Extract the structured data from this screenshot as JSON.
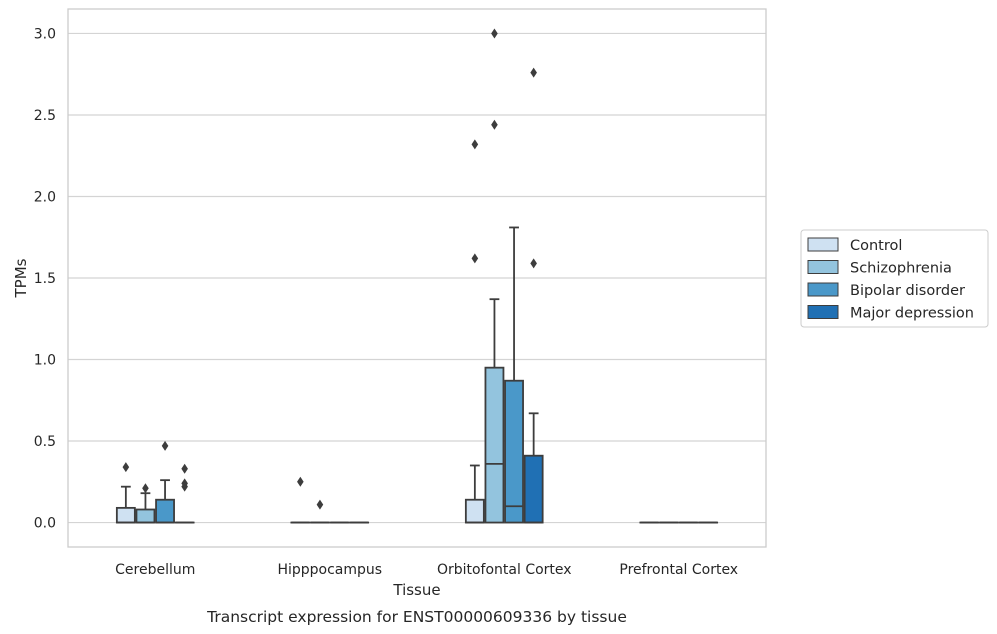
{
  "chart_data": {
    "type": "box",
    "xlabel": "Tissue",
    "ylabel": "TPMs",
    "caption": "Transcript expression for ENST00000609336 by tissue",
    "categories": [
      "Cerebellum",
      "Hipppocampus",
      "Orbitofontal Cortex",
      "Prefrontal Cortex"
    ],
    "ylim": [
      -0.15,
      3.15
    ],
    "yticks": [
      0.0,
      0.5,
      1.0,
      1.5,
      2.0,
      2.5,
      3.0
    ],
    "ytick_labels": [
      "0.0",
      "0.5",
      "1.0",
      "1.5",
      "2.0",
      "2.5",
      "3.0"
    ],
    "grid": "horizontal",
    "legend_position": "right",
    "series": [
      {
        "name": "Control",
        "color": "#cfe1f2",
        "boxes": [
          {
            "q1": 0.0,
            "median": 0.0,
            "q3": 0.09,
            "whislo": 0.0,
            "whishi": 0.22,
            "fliers": [
              0.34
            ]
          },
          {
            "q1": 0.0,
            "median": 0.0,
            "q3": 0.0,
            "whislo": 0.0,
            "whishi": 0.0,
            "fliers": [
              0.25
            ]
          },
          {
            "q1": 0.0,
            "median": 0.0,
            "q3": 0.14,
            "whislo": 0.0,
            "whishi": 0.35,
            "fliers": [
              1.62,
              2.32
            ]
          },
          {
            "q1": 0.0,
            "median": 0.0,
            "q3": 0.0,
            "whislo": 0.0,
            "whishi": 0.0,
            "fliers": []
          }
        ]
      },
      {
        "name": "Schizophrenia",
        "color": "#93c4de",
        "boxes": [
          {
            "q1": 0.0,
            "median": 0.0,
            "q3": 0.08,
            "whislo": 0.0,
            "whishi": 0.18,
            "fliers": [
              0.21
            ]
          },
          {
            "q1": 0.0,
            "median": 0.0,
            "q3": 0.0,
            "whislo": 0.0,
            "whishi": 0.0,
            "fliers": [
              0.11
            ]
          },
          {
            "q1": 0.0,
            "median": 0.36,
            "q3": 0.95,
            "whislo": 0.0,
            "whishi": 1.37,
            "fliers": [
              2.44,
              3.0
            ]
          },
          {
            "q1": 0.0,
            "median": 0.0,
            "q3": 0.0,
            "whislo": 0.0,
            "whishi": 0.0,
            "fliers": []
          }
        ]
      },
      {
        "name": "Bipolar disorder",
        "color": "#4a98c9",
        "boxes": [
          {
            "q1": 0.0,
            "median": 0.0,
            "q3": 0.14,
            "whislo": 0.0,
            "whishi": 0.26,
            "fliers": [
              0.47
            ]
          },
          {
            "q1": 0.0,
            "median": 0.0,
            "q3": 0.0,
            "whislo": 0.0,
            "whishi": 0.0,
            "fliers": []
          },
          {
            "q1": 0.0,
            "median": 0.1,
            "q3": 0.87,
            "whislo": 0.0,
            "whishi": 1.81,
            "fliers": []
          },
          {
            "q1": 0.0,
            "median": 0.0,
            "q3": 0.0,
            "whislo": 0.0,
            "whishi": 0.0,
            "fliers": []
          }
        ]
      },
      {
        "name": "Major depression",
        "color": "#2070b4",
        "boxes": [
          {
            "q1": 0.0,
            "median": 0.0,
            "q3": 0.0,
            "whislo": 0.0,
            "whishi": 0.0,
            "fliers": [
              0.22,
              0.24,
              0.33
            ]
          },
          {
            "q1": 0.0,
            "median": 0.0,
            "q3": 0.0,
            "whislo": 0.0,
            "whishi": 0.0,
            "fliers": []
          },
          {
            "q1": 0.0,
            "median": 0.0,
            "q3": 0.41,
            "whislo": 0.0,
            "whishi": 0.67,
            "fliers": [
              1.59,
              2.76
            ]
          },
          {
            "q1": 0.0,
            "median": 0.0,
            "q3": 0.0,
            "whislo": 0.0,
            "whishi": 0.0,
            "fliers": []
          }
        ]
      }
    ]
  }
}
